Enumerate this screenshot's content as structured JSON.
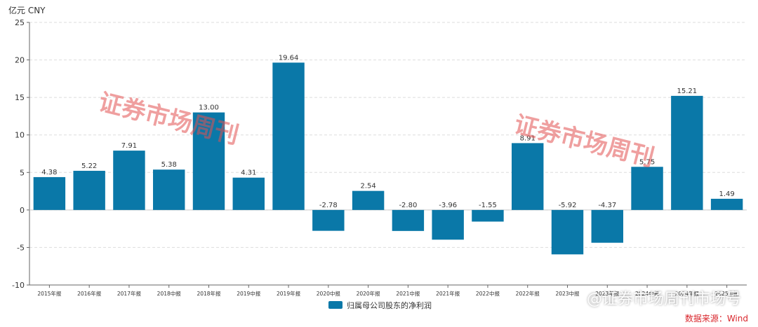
{
  "unit_label": "亿元  CNY",
  "source_label": "数据来源：Wind",
  "watermarks": {
    "left": "证券市场周刊",
    "right": "证券市场周刊",
    "handle": "@证券市场周刊市场号"
  },
  "colors": {
    "bar": "#0a78a8",
    "axis": "#666666",
    "grid": "#dddddd",
    "source": "#d9262c"
  },
  "chart_data": {
    "type": "bar",
    "categories": [
      "2015年报",
      "2016年报",
      "2017年报",
      "2018中报",
      "2018年报",
      "2019中报",
      "2019年报",
      "2020中报",
      "2020年报",
      "2021中报",
      "2021年报",
      "2022中报",
      "2022年报",
      "2023中报",
      "2023年报",
      "2024中报",
      "2024年报",
      "2025中报"
    ],
    "series": [
      {
        "name": "归属母公司股东的净利润",
        "values": [
          4.38,
          5.22,
          7.91,
          5.38,
          13.0,
          4.31,
          19.64,
          -2.78,
          2.54,
          -2.8,
          -3.96,
          -1.55,
          8.91,
          -5.92,
          -4.37,
          5.75,
          15.21,
          1.49
        ]
      }
    ],
    "data_labels": [
      "4.38",
      "5.22",
      "7.91",
      "5.38",
      "13.00",
      "4.31",
      "19.64",
      "-2.78",
      "2.54",
      "-2.80",
      "-3.96",
      "-1.55",
      "8.91",
      "-5.92",
      "-4.37",
      "5.75",
      "15.21",
      "1.49"
    ],
    "ylim": [
      -10,
      25
    ],
    "yticks": [
      -10,
      -5,
      0,
      5,
      10,
      15,
      20,
      25
    ],
    "grid": true,
    "legend_position": "bottom-center"
  }
}
